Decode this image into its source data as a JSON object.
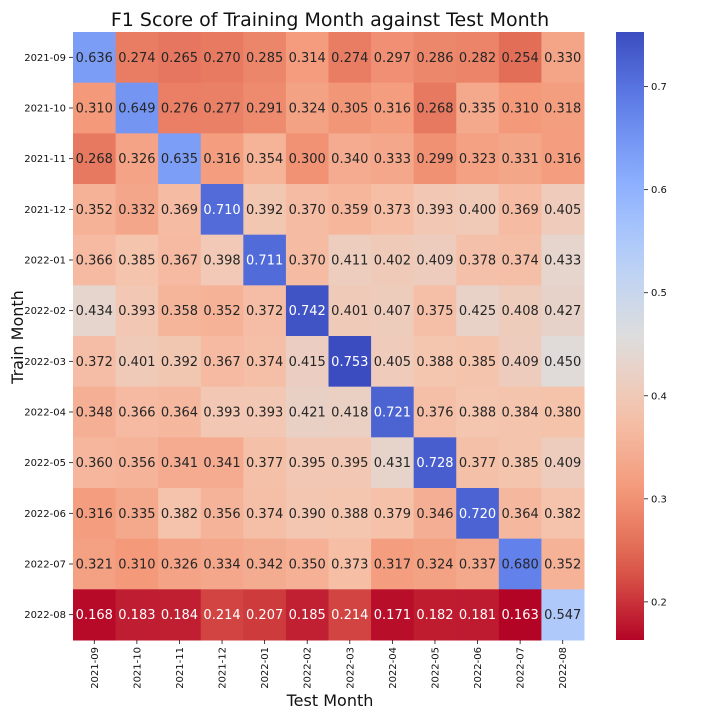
{
  "chart_data": {
    "type": "heatmap",
    "title": "F1 Score of Training Month against Test Month",
    "xlabel": "Test Month",
    "ylabel": "Train Month",
    "x_categories": [
      "2021-09",
      "2021-10",
      "2021-11",
      "2021-12",
      "2022-01",
      "2022-02",
      "2022-03",
      "2022-04",
      "2022-05",
      "2022-06",
      "2022-07",
      "2022-08"
    ],
    "y_categories": [
      "2021-09",
      "2021-10",
      "2021-11",
      "2021-12",
      "2022-01",
      "2022-02",
      "2022-03",
      "2022-04",
      "2022-05",
      "2022-06",
      "2022-07",
      "2022-08"
    ],
    "values": [
      [
        0.636,
        0.274,
        0.265,
        0.27,
        0.285,
        0.314,
        0.274,
        0.297,
        0.286,
        0.282,
        0.254,
        0.33
      ],
      [
        0.31,
        0.649,
        0.276,
        0.277,
        0.291,
        0.324,
        0.305,
        0.316,
        0.268,
        0.335,
        0.31,
        0.318
      ],
      [
        0.268,
        0.326,
        0.635,
        0.316,
        0.354,
        0.3,
        0.34,
        0.333,
        0.299,
        0.323,
        0.331,
        0.316
      ],
      [
        0.352,
        0.332,
        0.369,
        0.71,
        0.392,
        0.37,
        0.359,
        0.373,
        0.393,
        0.4,
        0.369,
        0.405
      ],
      [
        0.366,
        0.385,
        0.367,
        0.398,
        0.711,
        0.37,
        0.411,
        0.402,
        0.409,
        0.378,
        0.374,
        0.433
      ],
      [
        0.434,
        0.393,
        0.358,
        0.352,
        0.372,
        0.742,
        0.401,
        0.407,
        0.375,
        0.425,
        0.408,
        0.427
      ],
      [
        0.372,
        0.401,
        0.392,
        0.367,
        0.374,
        0.415,
        0.753,
        0.405,
        0.388,
        0.385,
        0.409,
        0.45
      ],
      [
        0.348,
        0.366,
        0.364,
        0.393,
        0.393,
        0.421,
        0.418,
        0.721,
        0.376,
        0.388,
        0.384,
        0.38
      ],
      [
        0.36,
        0.356,
        0.341,
        0.341,
        0.377,
        0.395,
        0.395,
        0.431,
        0.728,
        0.377,
        0.385,
        0.409
      ],
      [
        0.316,
        0.335,
        0.382,
        0.356,
        0.374,
        0.39,
        0.388,
        0.379,
        0.346,
        0.72,
        0.364,
        0.382
      ],
      [
        0.321,
        0.31,
        0.326,
        0.334,
        0.342,
        0.35,
        0.373,
        0.317,
        0.324,
        0.337,
        0.68,
        0.352
      ],
      [
        0.168,
        0.183,
        0.184,
        0.214,
        0.207,
        0.185,
        0.214,
        0.171,
        0.182,
        0.181,
        0.163,
        0.547
      ]
    ],
    "colormap": "coolwarm",
    "vmin": 0.163,
    "vmax": 0.753,
    "colorbar_ticks": [
      0.2,
      0.3,
      0.4,
      0.5,
      0.6,
      0.7
    ],
    "annotations": true,
    "value_format": "3 decimals"
  }
}
